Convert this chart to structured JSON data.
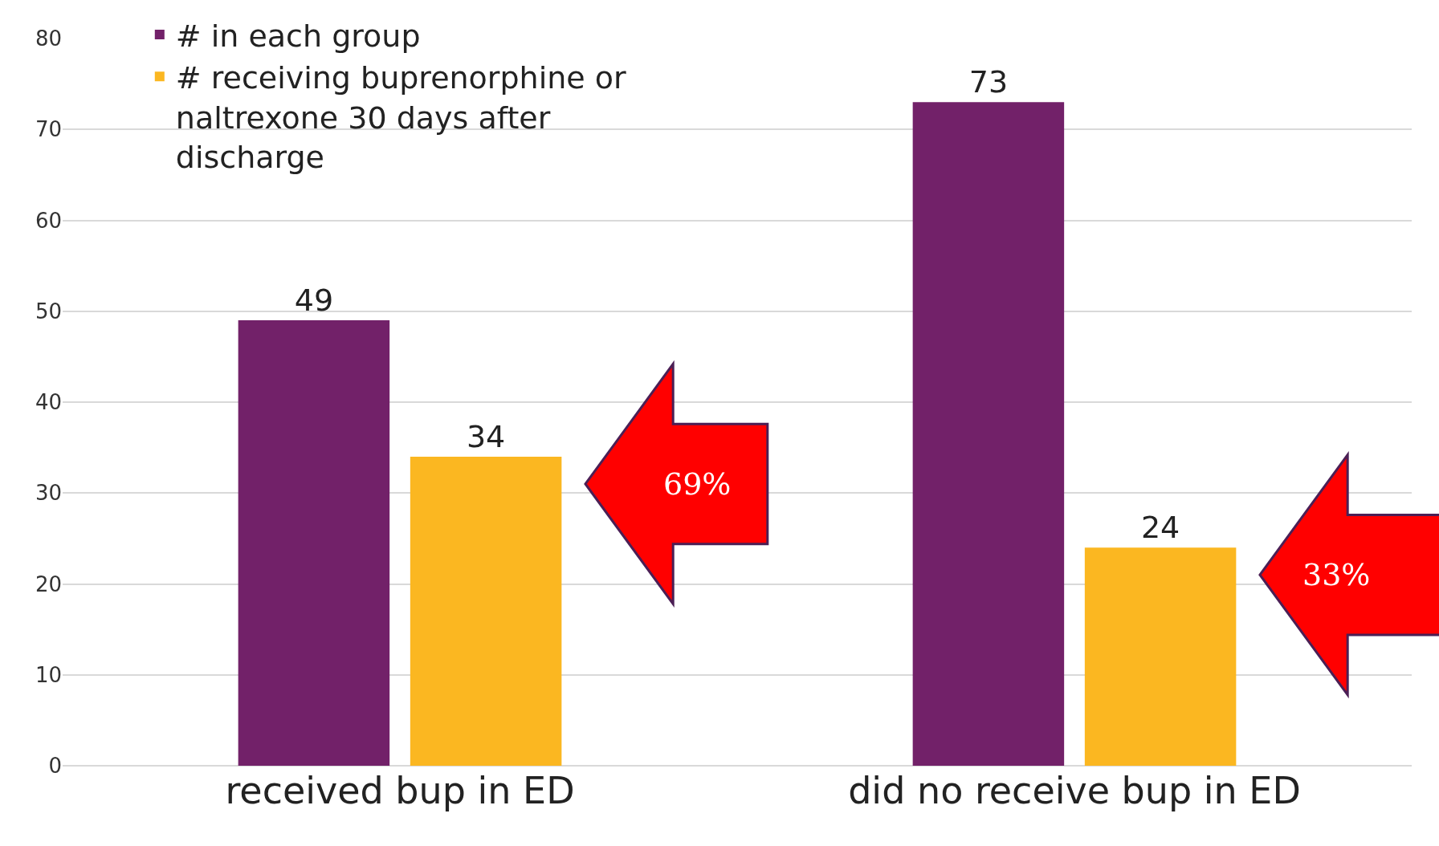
{
  "chart_data": {
    "type": "bar",
    "categories": [
      "received bup in ED",
      "did no receive bup in ED"
    ],
    "series": [
      {
        "name": "# in each group",
        "color": "#722169",
        "values": [
          49,
          73
        ]
      },
      {
        "name": "# receiving buprenorphine or naltrexone 30 days after discharge",
        "color": "#fbb721",
        "values": [
          34,
          24
        ]
      }
    ],
    "ylim": [
      0,
      80
    ],
    "yticks": [
      0,
      10,
      20,
      30,
      40,
      50,
      60,
      70,
      80
    ],
    "grid": "y",
    "legend": "top left",
    "data_labels": true,
    "annotations": [
      "69%",
      "33%"
    ]
  }
}
